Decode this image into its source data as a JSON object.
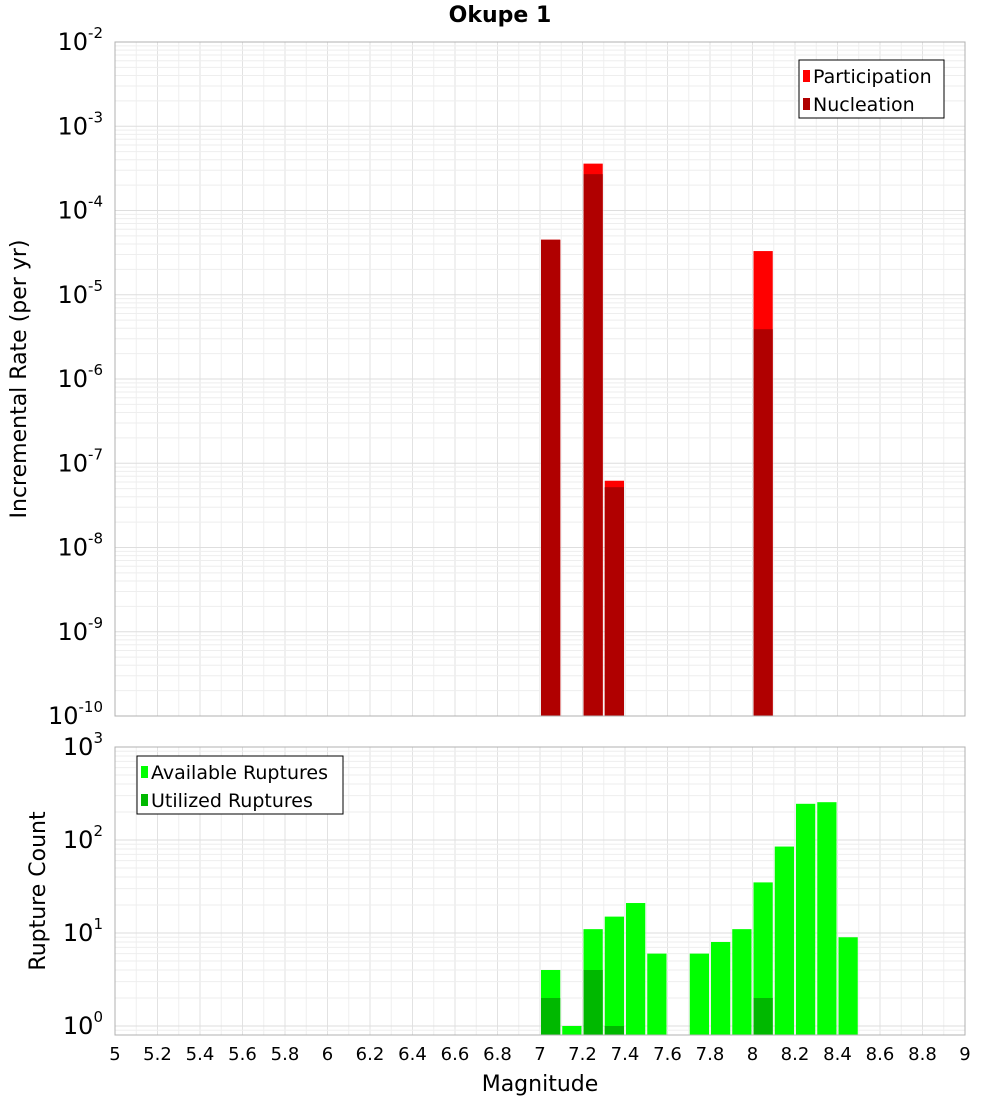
{
  "chart_data": [
    {
      "type": "bar",
      "title": "Okupe 1",
      "ylabel": "Incremental Rate (per yr)",
      "yscale": "log",
      "ylim": [
        1e-10,
        0.01
      ],
      "y_exponents": [
        "-10",
        "-9",
        "-8",
        "-7",
        "-6",
        "-5",
        "-4",
        "-3",
        "-2"
      ],
      "xlim": [
        5,
        9
      ],
      "bin_width": 0.1,
      "legend": "top-right",
      "grid": true,
      "series": [
        {
          "name": "Participation",
          "color": "#ff0000",
          "x": [
            7.05,
            7.25,
            7.35,
            8.05
          ],
          "values": [
            4.5e-05,
            0.00036,
            6.2e-08,
            3.3e-05
          ]
        },
        {
          "name": "Nucleation",
          "color": "#b00000",
          "x": [
            7.05,
            7.25,
            7.35,
            8.05
          ],
          "values": [
            4.5e-05,
            0.00027,
            5.2e-08,
            3.9e-06
          ]
        }
      ]
    },
    {
      "type": "bar",
      "xlabel": "Magnitude",
      "ylabel": "Rupture Count",
      "yscale": "log",
      "ylim": [
        0.8,
        1000
      ],
      "y_exponents": [
        "0",
        "1",
        "2",
        "3"
      ],
      "xlim": [
        5,
        9
      ],
      "x_ticks": [
        "5",
        "5.2",
        "5.4",
        "5.6",
        "5.8",
        "6",
        "6.2",
        "6.4",
        "6.6",
        "6.8",
        "7",
        "7.2",
        "7.4",
        "7.6",
        "7.8",
        "8",
        "8.2",
        "8.4",
        "8.6",
        "8.8",
        "9"
      ],
      "bin_width": 0.1,
      "legend": "top-left",
      "grid": true,
      "series": [
        {
          "name": "Available Ruptures",
          "color": "#00ff00",
          "x": [
            7.05,
            7.15,
            7.25,
            7.35,
            7.45,
            7.55,
            7.75,
            7.85,
            7.95,
            8.05,
            8.15,
            8.25,
            8.35,
            8.45
          ],
          "values": [
            4,
            1,
            11,
            15,
            21,
            6,
            6,
            8,
            11,
            35,
            85,
            245,
            255,
            9
          ]
        },
        {
          "name": "Utilized Ruptures",
          "color": "#00b800",
          "x": [
            7.05,
            7.25,
            7.35,
            8.05
          ],
          "values": [
            2,
            4,
            1,
            2
          ]
        }
      ]
    }
  ]
}
